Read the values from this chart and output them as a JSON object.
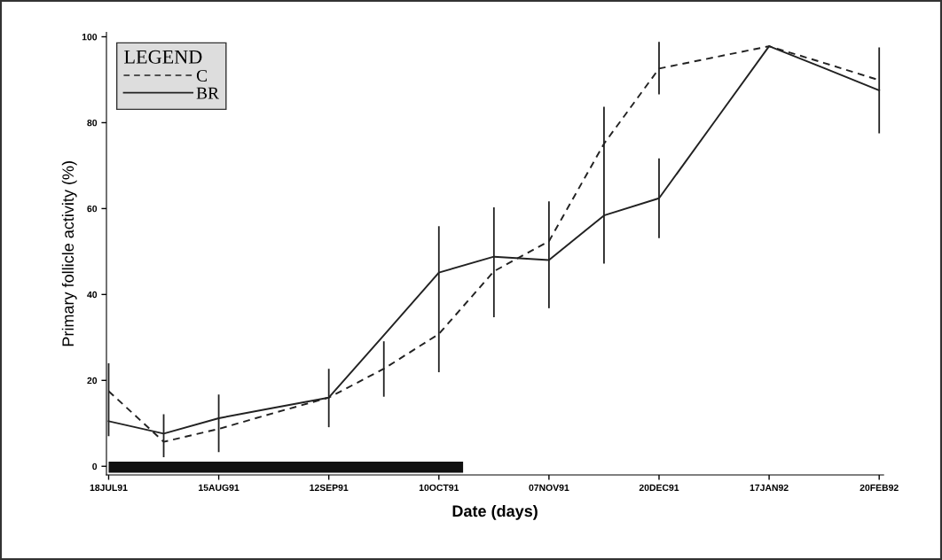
{
  "chart_data": {
    "type": "line",
    "xlabel": "Date (days)",
    "ylabel": "Primary follicle activity (%)",
    "legend_title": "LEGEND",
    "categories": [
      "18JUL91",
      null,
      "15AUG91",
      null,
      "12SEP91",
      null,
      "10OCT91",
      null,
      "07NOV91",
      null,
      "20DEC91",
      null,
      "17JAN92",
      null,
      "20FEB92"
    ],
    "ylim": [
      -2,
      101
    ],
    "yticks": [
      0,
      20,
      40,
      60,
      80,
      100
    ],
    "grid": false,
    "legend": "top left",
    "marker": "none",
    "series": [
      {
        "name": "C",
        "color": "#222222",
        "line_style": "dashed",
        "values": [
          17.5,
          5.7,
          8.7,
          12.4,
          16.0,
          22.7,
          30.8,
          45.4,
          52.4,
          75.1,
          92.6,
          95.2,
          97.8,
          93.9,
          89.9
        ],
        "errors": [
          [
            7,
            24
          ],
          null,
          null,
          null,
          null,
          [
            16.2,
            29.1
          ],
          null,
          null,
          null,
          null,
          [
            86.6,
            98.8
          ],
          null,
          null,
          null,
          null
        ]
      },
      {
        "name": "BR",
        "color": "#222222",
        "line_style": "solid",
        "values": [
          10.5,
          7.6,
          11.2,
          13.6,
          16.0,
          30.5,
          45.1,
          48.8,
          48.0,
          58.4,
          62.4,
          80.1,
          97.8,
          92.7,
          87.5
        ],
        "errors": [
          null,
          [
            2.1,
            12.1
          ],
          [
            3.3,
            16.7
          ],
          null,
          [
            9.1,
            22.7
          ],
          null,
          [
            21.9,
            55.9
          ],
          [
            34.7,
            60.3
          ],
          [
            36.8,
            61.7
          ],
          [
            47.2,
            83.7
          ],
          [
            53.1,
            71.7
          ],
          null,
          null,
          null,
          [
            77.5,
            97.5
          ]
        ]
      }
    ]
  }
}
